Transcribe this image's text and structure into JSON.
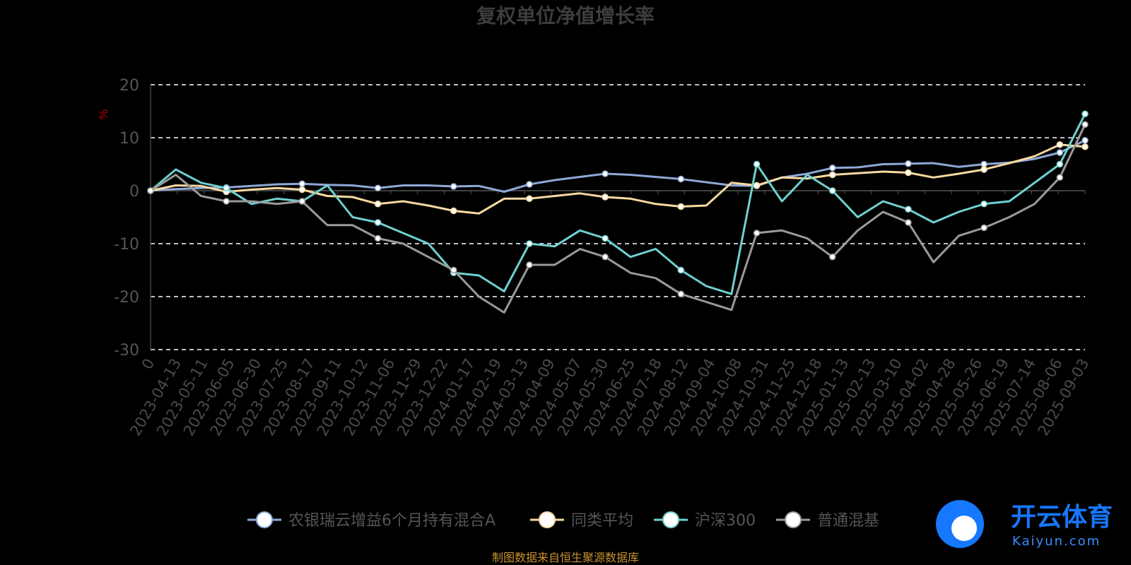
{
  "chart_data": {
    "type": "line",
    "title": "复权单位净值增长率",
    "ylabel": "%",
    "ylim": [
      -30,
      20
    ],
    "yticks": [
      20,
      10,
      0,
      -10,
      -20,
      -30
    ],
    "grid": true,
    "legend_position": "bottom",
    "x_ticks": [
      "0",
      "2023-04-13",
      "2023-05-11",
      "2023-06-05",
      "2023-06-30",
      "2023-07-25",
      "2023-08-17",
      "2023-09-11",
      "2023-10-12",
      "2023-11-06",
      "2023-11-29",
      "2023-12-22",
      "2024-01-17",
      "2024-02-19",
      "2024-03-13",
      "2024-04-09",
      "2024-05-07",
      "2024-05-30",
      "2024-06-25",
      "2024-07-18",
      "2024-08-12",
      "2024-09-04",
      "2024-10-08",
      "2024-10-31",
      "2024-11-25",
      "2024-12-18",
      "2025-01-13",
      "2025-02-13",
      "2025-03-10",
      "2025-04-02",
      "2025-04-28",
      "2025-05-26",
      "2025-06-19",
      "2025-07-14",
      "2025-08-06",
      "2025-09-03"
    ],
    "series": [
      {
        "name": "农银瑞云增益6个月持有混合A",
        "color": "#8fa8d8",
        "values": [
          0,
          0.3,
          0.5,
          0.6,
          0.9,
          1.2,
          1.3,
          1.1,
          1.0,
          0.5,
          1.0,
          1.0,
          0.8,
          0.9,
          -0.2,
          1.2,
          2.0,
          2.6,
          3.2,
          3.0,
          2.6,
          2.2,
          1.6,
          1.0,
          0.9,
          2.5,
          3.2,
          4.3,
          4.4,
          5.0,
          5.1,
          5.2,
          4.5,
          5.0,
          5.3,
          6.0,
          7.2,
          9.5
        ]
      },
      {
        "name": "同类平均",
        "color": "#f8d9a0",
        "values": [
          0,
          1.0,
          0.9,
          -0.2,
          0.2,
          0.5,
          0.2,
          -1.0,
          -1.2,
          -2.5,
          -2.0,
          -2.8,
          -3.8,
          -4.3,
          -1.5,
          -1.5,
          -1.0,
          -0.5,
          -1.2,
          -1.5,
          -2.5,
          -3.0,
          -2.8,
          1.5,
          1.0,
          2.5,
          2.3,
          3.0,
          3.3,
          3.6,
          3.4,
          2.5,
          3.2,
          4.0,
          5.2,
          6.5,
          8.7,
          8.3
        ]
      },
      {
        "name": "沪深300",
        "color": "#70d0d0",
        "values": [
          0,
          4.0,
          1.5,
          0.5,
          -2.5,
          -1.5,
          -2.0,
          1.0,
          -5.0,
          -6.0,
          -8.0,
          -10.0,
          -15.5,
          -16.0,
          -19.0,
          -10.0,
          -10.5,
          -7.5,
          -9.0,
          -12.5,
          -11.0,
          -15.0,
          -18.0,
          -19.5,
          5.0,
          -2.0,
          3.0,
          0,
          -5.0,
          -2.0,
          -3.5,
          -6.0,
          -4.0,
          -2.5,
          -2.0,
          1.5,
          5.0,
          14.5
        ]
      },
      {
        "name": "普通混基",
        "color": "#9a9a9a",
        "values": [
          0,
          3.0,
          -1.0,
          -2.0,
          -2.0,
          -2.5,
          -2.0,
          -6.5,
          -6.5,
          -9.0,
          -10.0,
          -12.5,
          -15.0,
          -20.0,
          -23.0,
          -14.0,
          -14.0,
          -11.0,
          -12.5,
          -15.5,
          -16.5,
          -19.5,
          -21.0,
          -22.5,
          -8.0,
          -7.5,
          -9.0,
          -12.5,
          -7.5,
          -4.0,
          -6.0,
          -13.5,
          -8.5,
          -7.0,
          -5.0,
          -2.5,
          2.5,
          12.5
        ]
      }
    ],
    "source_note": "制图数据来自恒生聚源数据库",
    "watermark": {
      "brand": "开云体育",
      "domain": "Kaiyun.com"
    }
  }
}
